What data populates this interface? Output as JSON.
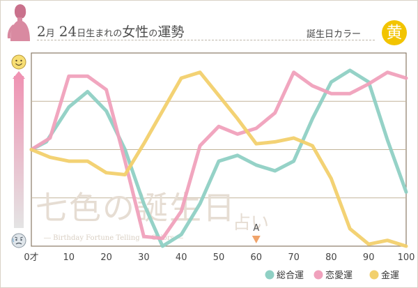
{
  "header": {
    "month": "2",
    "month_unit": "月",
    "day": "24",
    "day_unit": "日",
    "suffix": "生まれの",
    "woman": "女性",
    "no": "の",
    "fortune": "運勢",
    "birth_color_label": "誕生日カラー",
    "birth_color_char": "黄"
  },
  "colors": {
    "total": "#8fd0c4",
    "love": "#f0a1bc",
    "money": "#f2d06d",
    "birth_color": "#f2c400"
  },
  "watermark": {
    "main": "七色の誕生日",
    "sub": "― Birthday Fortune Telling ― Colors ―",
    "uranai": "占い"
  },
  "marker": {
    "label": "A",
    "age": 60
  },
  "chart_data": {
    "type": "line",
    "xlabel": "",
    "ylabel": "",
    "xlim": [
      0,
      100
    ],
    "x_ticks": [
      "0才",
      "10",
      "20",
      "30",
      "40",
      "50",
      "60",
      "70",
      "80",
      "90",
      "100"
    ],
    "ylim": [
      0,
      100
    ],
    "y_top_icon": "smile-face-icon",
    "y_bottom_icon": "worried-face-icon",
    "legend_position": "bottom-right",
    "series": [
      {
        "name": "総合運",
        "color": "#8fd0c4",
        "points": [
          [
            0,
            50
          ],
          [
            4,
            54
          ],
          [
            10,
            72
          ],
          [
            15,
            80
          ],
          [
            20,
            70
          ],
          [
            25,
            50
          ],
          [
            30,
            22
          ],
          [
            35,
            0
          ],
          [
            40,
            6
          ],
          [
            45,
            22
          ],
          [
            50,
            44
          ],
          [
            55,
            47
          ],
          [
            60,
            42
          ],
          [
            65,
            39
          ],
          [
            70,
            44
          ],
          [
            75,
            66
          ],
          [
            80,
            85
          ],
          [
            85,
            91
          ],
          [
            90,
            85
          ],
          [
            95,
            55
          ],
          [
            100,
            28
          ]
        ]
      },
      {
        "name": "恋愛運",
        "color": "#f0a1bc",
        "points": [
          [
            0,
            50
          ],
          [
            5,
            56
          ],
          [
            10,
            88
          ],
          [
            15,
            88
          ],
          [
            20,
            81
          ],
          [
            25,
            44
          ],
          [
            30,
            5
          ],
          [
            35,
            4
          ],
          [
            40,
            18
          ],
          [
            45,
            52
          ],
          [
            50,
            62
          ],
          [
            55,
            58
          ],
          [
            60,
            61
          ],
          [
            65,
            69
          ],
          [
            70,
            90
          ],
          [
            75,
            83
          ],
          [
            80,
            79
          ],
          [
            85,
            79
          ],
          [
            90,
            84
          ],
          [
            95,
            90
          ],
          [
            100,
            87
          ]
        ]
      },
      {
        "name": "金運",
        "color": "#f2d06d",
        "points": [
          [
            0,
            50
          ],
          [
            5,
            46
          ],
          [
            10,
            44
          ],
          [
            15,
            44
          ],
          [
            20,
            38
          ],
          [
            25,
            37
          ],
          [
            30,
            53
          ],
          [
            35,
            70
          ],
          [
            40,
            87
          ],
          [
            45,
            90
          ],
          [
            50,
            78
          ],
          [
            55,
            66
          ],
          [
            60,
            53
          ],
          [
            65,
            54
          ],
          [
            70,
            56
          ],
          [
            75,
            52
          ],
          [
            80,
            35
          ],
          [
            85,
            9
          ],
          [
            90,
            1
          ],
          [
            95,
            3
          ],
          [
            100,
            0
          ]
        ]
      }
    ]
  }
}
